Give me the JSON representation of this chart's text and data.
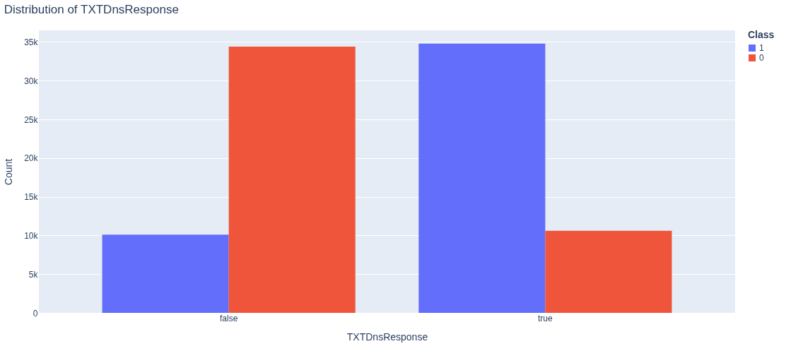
{
  "chart_data": {
    "type": "bar",
    "title": "Distribution of TXTDnsResponse",
    "xlabel": "TXTDnsResponse",
    "ylabel": "Count",
    "legend_title": "Class",
    "categories": [
      "false",
      "true"
    ],
    "series": [
      {
        "name": "1",
        "color": "#636efa",
        "values": [
          10100,
          34800
        ]
      },
      {
        "name": "0",
        "color": "#ef553b",
        "values": [
          34400,
          10600
        ]
      }
    ],
    "ylim": [
      0,
      36500
    ],
    "yticks": [
      0,
      {
        "value": 5000,
        "label": "5k"
      },
      {
        "value": 10000,
        "label": "10k"
      },
      {
        "value": 15000,
        "label": "15k"
      },
      {
        "value": 20000,
        "label": "20k"
      },
      {
        "value": 25000,
        "label": "25k"
      },
      {
        "value": 30000,
        "label": "30k"
      },
      {
        "value": 35000,
        "label": "35k"
      }
    ],
    "grid": "y",
    "legend": "top right"
  }
}
